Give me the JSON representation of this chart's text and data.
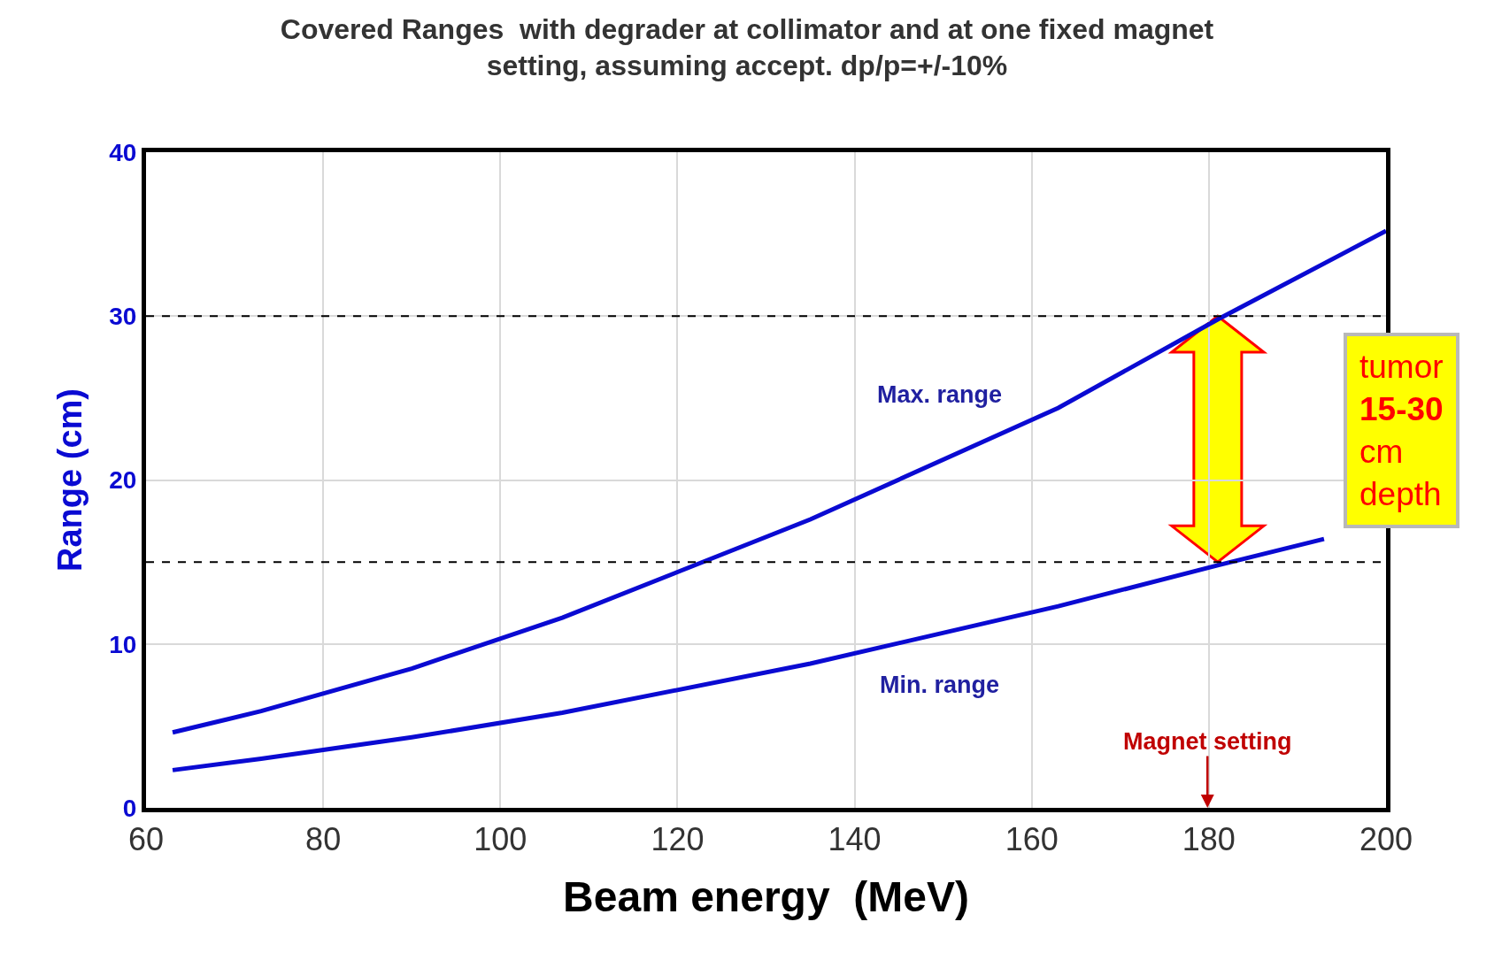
{
  "chart_data": {
    "type": "line",
    "title": "Covered Ranges  with degrader at collimator and at one fixed magnet\nsetting, assuming accept. dp/p=+/-10%",
    "xlabel": "Beam energy  (MeV)",
    "ylabel": "Range (cm)",
    "xlim": [
      60,
      200
    ],
    "xticks": [
      60,
      80,
      100,
      120,
      140,
      160,
      180,
      200
    ],
    "ylim": [
      0,
      40
    ],
    "yticks": [
      0,
      10,
      20,
      30,
      40
    ],
    "grid": true,
    "legend": false,
    "marker": "none",
    "line_style": "solid",
    "series": [
      {
        "color": "#0a0ad2",
        "x": [
          63,
          73,
          90,
          107,
          135,
          163,
          181,
          200
        ],
        "values": [
          4.6,
          5.9,
          8.5,
          11.6,
          17.6,
          24.4,
          29.8,
          35.2
        ]
      },
      {
        "color": "#0a0ad2",
        "x": [
          63,
          73,
          90,
          107,
          135,
          163,
          181,
          193
        ],
        "values": [
          2.3,
          3.0,
          4.3,
          5.8,
          8.8,
          12.3,
          14.8,
          16.4
        ]
      }
    ],
    "ref_lines": [
      {
        "axis": "y",
        "value": 30,
        "color": "#000000",
        "line_style": "dashed"
      },
      {
        "axis": "y",
        "value": 15,
        "color": "#000000",
        "line_style": "dashed"
      }
    ],
    "annotations": [
      "Max. range",
      "Min. range",
      "Magnet setting",
      "tumor\n15-30\ncm\ndepth"
    ]
  }
}
